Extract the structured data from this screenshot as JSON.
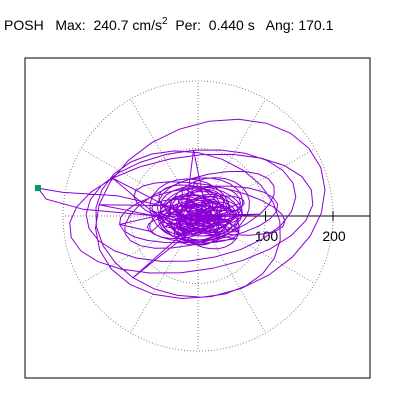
{
  "header": {
    "station": "POSH",
    "max_label": "Max:",
    "max_value": "240.7",
    "max_unit": "cm/s",
    "max_unit_exp": "2",
    "per_label": "Per:",
    "per_value": "0.440 s",
    "ang_label": "Ang:",
    "ang_value": "170.1"
  },
  "chart_data": {
    "type": "line",
    "title": "POSH  Max: 240.7 cm/s2  Per: 0.440 s  Ang: 170.1",
    "xlabel": "",
    "ylabel": "",
    "x_ticks": [
      100,
      200
    ],
    "tick_labels": [
      "100",
      "200"
    ],
    "xlim": [
      -260,
      260
    ],
    "ylim": [
      -260,
      260
    ],
    "polar_grid": {
      "ring_radii": [
        100,
        200
      ],
      "spoke_angles_deg": [
        0,
        30,
        60,
        90,
        120,
        150,
        180,
        210,
        240,
        270,
        300,
        330
      ]
    },
    "max_amplitude": 240.7,
    "max_angle_deg": 170.1,
    "colors": {
      "trace": "#8a00d4",
      "marker": "#009966",
      "grid": "#808080",
      "frame": "#000000"
    }
  }
}
